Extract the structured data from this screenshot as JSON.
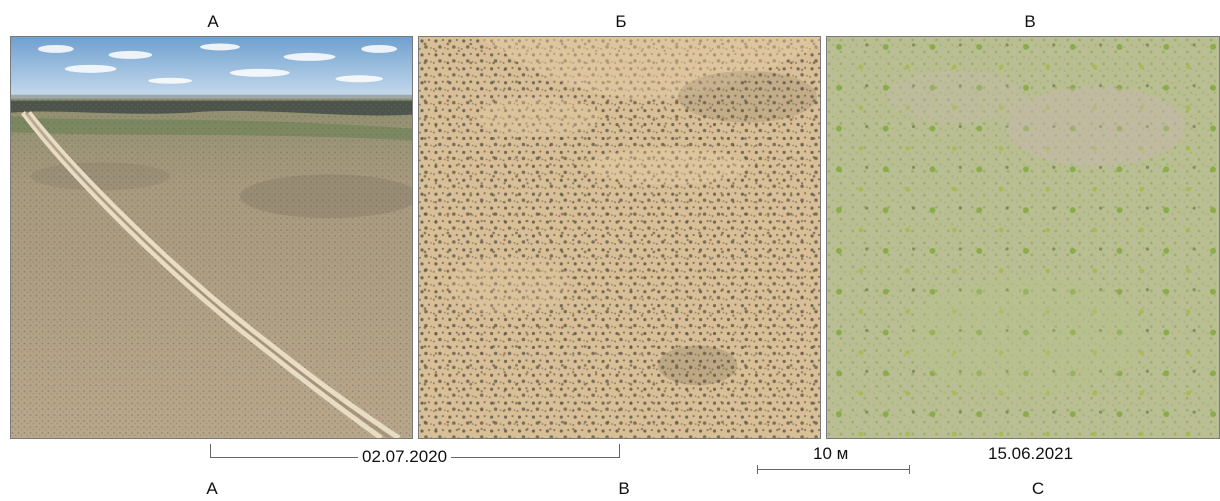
{
  "top_labels": [
    "А",
    "Б",
    "В"
  ],
  "bottom_labels": [
    "A",
    "B",
    "C"
  ],
  "dates": {
    "first": "02.07.2020",
    "second": "15.06.2021"
  },
  "scale_bar": {
    "label": "10 м"
  },
  "panels": [
    {
      "id": "A",
      "content": "oblique aerial photo of dry steppe with dirt track, sky with clouds",
      "palette": {
        "sky": "#8fb6d8",
        "ground": "#b7a58a",
        "horizon": "#556b4a"
      }
    },
    {
      "id": "B",
      "content": "nadir drone photo of dry sandy steppe with dark shrub patches",
      "palette": {
        "base": "#d8bd94",
        "spots": "#6b6248"
      }
    },
    {
      "id": "C",
      "content": "nadir drone photo of green steppe vegetation",
      "palette": {
        "base": "#b7bf8c",
        "spots": "#7fa83a"
      }
    }
  ]
}
